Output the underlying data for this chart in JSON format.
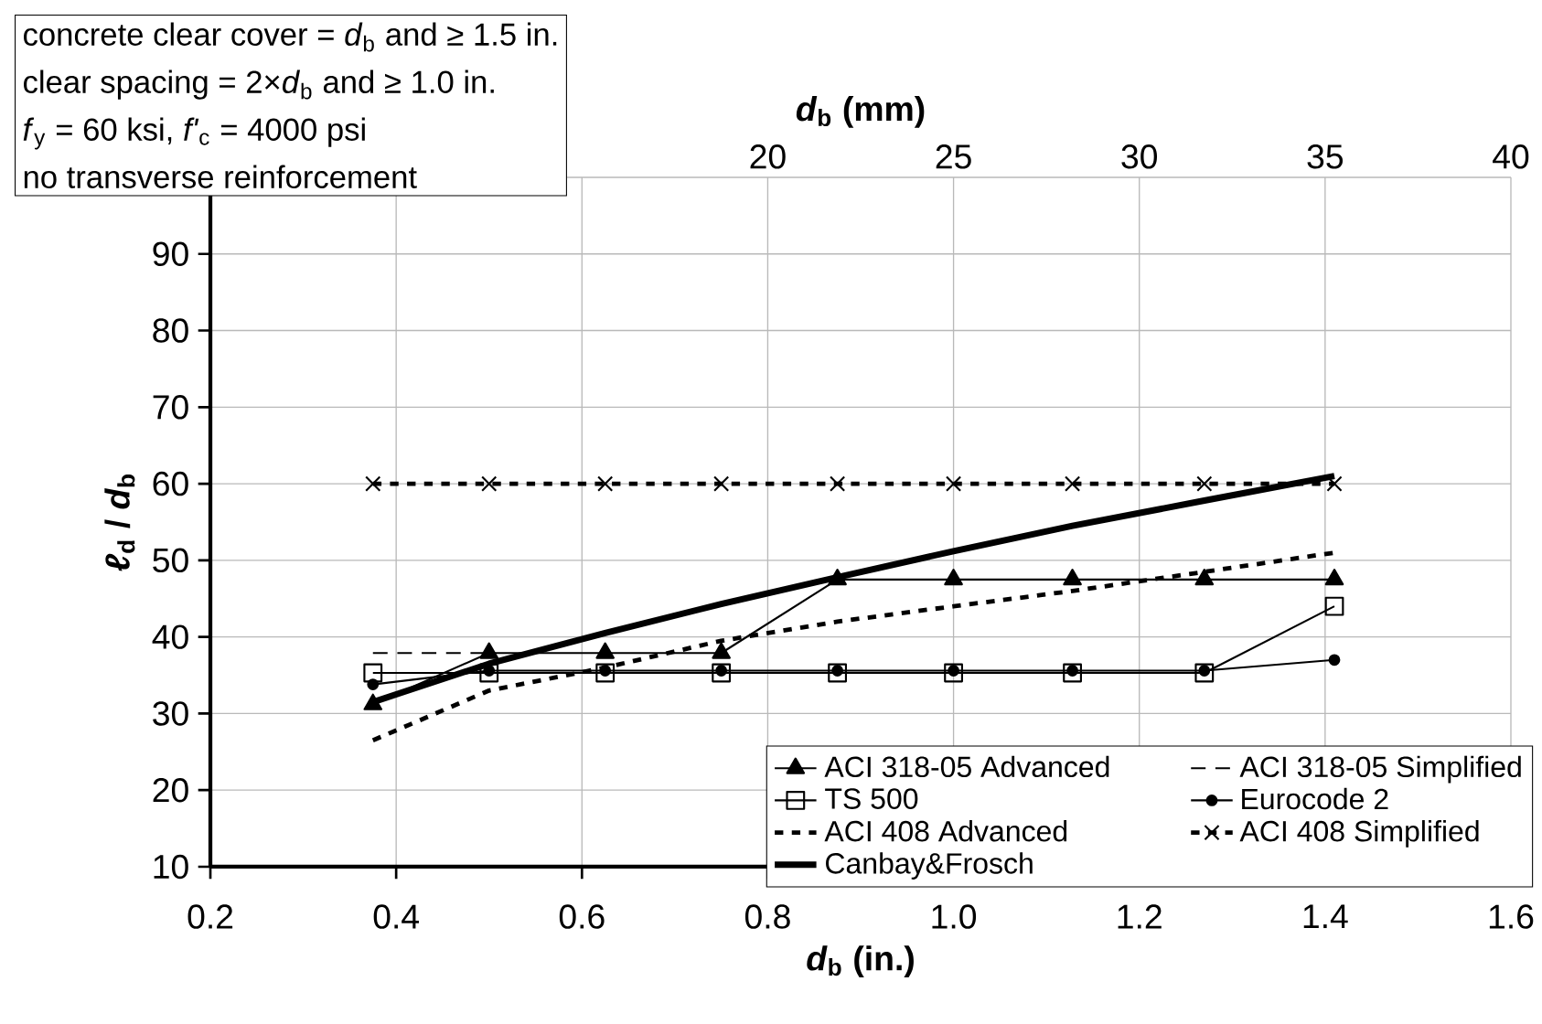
{
  "chart_data": {
    "type": "line",
    "xlabel": "*d*$_{b}$ (in.)",
    "ylabel": "*ℓ*$_{d}$ / *d*$_{b}$",
    "x2label": "*d*$_{b}$ (mm)",
    "x": [
      0.375,
      0.5,
      0.625,
      0.75,
      0.875,
      1.0,
      1.128,
      1.27,
      1.41
    ],
    "series": [
      {
        "name": "ACI 318-05 Advanced",
        "color": "#000000",
        "marker": "triangle",
        "line_style": "solid",
        "values": [
          31.2,
          37.9,
          37.9,
          37.9,
          47.5,
          47.5,
          47.5,
          47.5,
          47.5
        ]
      },
      {
        "name": "ACI 318-05 Simplified",
        "color": "#000000",
        "marker": "none",
        "line_style": "dashed",
        "values": [
          37.9,
          37.9,
          null,
          null,
          null,
          null,
          null,
          null,
          null
        ]
      },
      {
        "name": "TS 500",
        "color": "#000000",
        "marker": "square",
        "line_style": "solid",
        "values": [
          35.3,
          35.3,
          35.3,
          35.3,
          35.3,
          35.3,
          35.3,
          35.3,
          44
        ]
      },
      {
        "name": "Eurocode 2",
        "color": "#000000",
        "marker": "circle",
        "line_style": "solid",
        "values": [
          33.8,
          35.6,
          35.6,
          35.6,
          35.6,
          35.6,
          35.6,
          35.6,
          37
        ]
      },
      {
        "name": "ACI 408 Advanced",
        "color": "#000000",
        "marker": "none",
        "line_style": "dotted",
        "values": [
          26.5,
          33,
          36,
          39.5,
          42,
          44,
          46,
          48.5,
          51
        ]
      },
      {
        "name": "ACI 408 Simplified",
        "color": "#000000",
        "marker": "cross",
        "line_style": "dotted",
        "values": [
          60,
          60,
          60,
          60,
          60,
          60,
          60,
          60,
          60
        ]
      },
      {
        "name": "Canbay&Frosch",
        "color": "#000000",
        "marker": "none",
        "line_style": "solid",
        "values": [
          31.5,
          36.5,
          40.5,
          44.3,
          47.8,
          51.2,
          54.5,
          57.8,
          61
        ]
      }
    ],
    "xlim": [
      0.2,
      1.6
    ],
    "xticks": [
      0.2,
      0.4,
      0.6,
      0.8,
      {
        "value": 1.0,
        "label": "1.0"
      },
      1.2,
      1.4,
      1.6
    ],
    "ylim": [
      10,
      100
    ],
    "yticks": [
      10,
      20,
      30,
      40,
      50,
      60,
      70,
      80,
      90
    ],
    "x2lim": [
      5,
      40
    ],
    "x2ticks": [
      20,
      25,
      30,
      35,
      40
    ],
    "grid": true,
    "legend": "bottom right",
    "annotations": [
      "concrete clear cover = *d*$_{b}$ and ≥ 1.5 in.",
      "clear spacing = 2×*d*$_{b}$ and ≥ 1.0 in.",
      "*f*$_{y}$ = 60 ksi,   *f'*$_{c}$ = 4000 psi",
      "no transverse reinforcement"
    ]
  }
}
